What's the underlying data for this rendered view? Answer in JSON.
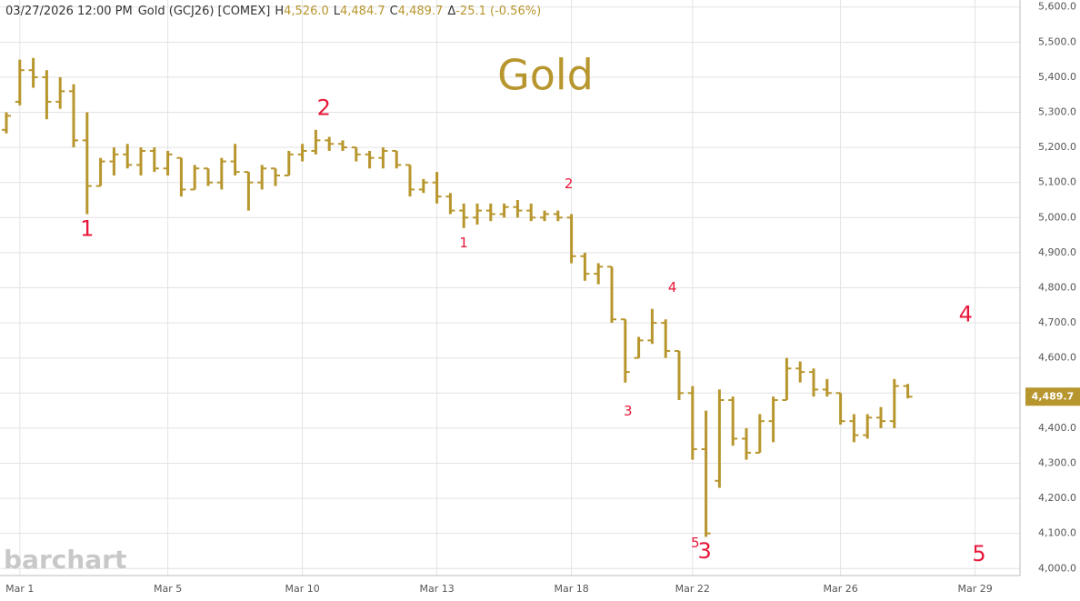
{
  "chart_data": {
    "type": "ohlc",
    "title": "Gold",
    "header": {
      "date_time": "03/27/2026  12:00 PM",
      "instrument": "Gold (GCJ26) [COMEX]",
      "stats": [
        {
          "key": "H",
          "value": "4,526.0"
        },
        {
          "key": "L",
          "value": "4,484.7"
        },
        {
          "key": "C",
          "value": "4,489.7"
        },
        {
          "key": "Δ",
          "value": "-25.1 (-0.56%)"
        }
      ]
    },
    "watermark": "barchart",
    "color": "#b8962e",
    "annotation_color": "#e8173a",
    "categories": [
      null,
      "Mar 1",
      null,
      null,
      null,
      null,
      null,
      null,
      null,
      null,
      null,
      null,
      "Mar 5",
      null,
      null,
      null,
      null,
      null,
      null,
      null,
      null,
      null,
      "Mar 10",
      null,
      null,
      null,
      null,
      null,
      null,
      null,
      null,
      null,
      "Mar 13",
      null,
      null,
      null,
      null,
      null,
      null,
      null,
      null,
      null,
      "Mar 18",
      null,
      null,
      null,
      null,
      null,
      null,
      null,
      null,
      "Mar 22",
      null,
      null,
      null,
      null,
      null,
      null,
      null,
      null,
      null,
      null,
      "Mar 26",
      null,
      null,
      null,
      null,
      null,
      null,
      null,
      null,
      null,
      "Mar 29"
    ],
    "open": [
      5250,
      5330,
      5420,
      5400,
      5330,
      5360,
      5220,
      5090,
      5160,
      5180,
      5150,
      5190,
      5140,
      5170,
      5080,
      5140,
      5100,
      5160,
      5130,
      5100,
      5140,
      5120,
      5180,
      5190,
      5220,
      5210,
      5200,
      5180,
      5170,
      5190,
      5150,
      5080,
      5100,
      5060,
      5020,
      5000,
      5020,
      5010,
      5030,
      5020,
      5000,
      5010,
      5000,
      4890,
      4840,
      4860,
      4710,
      4600,
      4650,
      4700,
      4620,
      4500,
      4340,
      4250,
      4480,
      4370,
      4330,
      4420,
      4480,
      4570,
      4560,
      4510,
      4500,
      4420,
      4380,
      4430,
      4420,
      4520,
      null,
      null,
      null,
      null,
      null
    ],
    "high": [
      5300,
      5450,
      5455,
      5420,
      5400,
      5380,
      5300,
      5170,
      5200,
      5210,
      5200,
      5200,
      5190,
      5170,
      5150,
      5140,
      5170,
      5210,
      5130,
      5150,
      5140,
      5190,
      5210,
      5250,
      5230,
      5220,
      5200,
      5190,
      5200,
      5190,
      5150,
      5110,
      5130,
      5070,
      5040,
      5040,
      5040,
      5040,
      5050,
      5040,
      5020,
      5020,
      5010,
      4900,
      4870,
      4860,
      4710,
      4660,
      4740,
      4710,
      4620,
      4520,
      4450,
      4510,
      4490,
      4400,
      4440,
      4490,
      4600,
      4590,
      4570,
      4540,
      4500,
      4440,
      4440,
      4460,
      4540,
      4526,
      null,
      null,
      null,
      null,
      null
    ],
    "low": [
      5240,
      5320,
      5370,
      5280,
      5310,
      5200,
      5010,
      5090,
      5120,
      5140,
      5120,
      5130,
      5120,
      5060,
      5080,
      5090,
      5080,
      5120,
      5020,
      5080,
      5090,
      5120,
      5160,
      5180,
      5190,
      5190,
      5160,
      5140,
      5140,
      5140,
      5060,
      5070,
      5040,
      5010,
      4970,
      4980,
      4990,
      5000,
      5000,
      4990,
      4990,
      4990,
      4870,
      4820,
      4810,
      4700,
      4530,
      4600,
      4640,
      4600,
      4480,
      4310,
      4090,
      4230,
      4350,
      4310,
      4330,
      4360,
      4480,
      4530,
      4490,
      4490,
      4410,
      4360,
      4370,
      4400,
      4400,
      4484.7,
      null,
      null,
      null,
      null,
      null
    ],
    "close": [
      5290,
      5420,
      5400,
      5330,
      5360,
      5220,
      5090,
      5160,
      5180,
      5150,
      5190,
      5140,
      5180,
      5080,
      5140,
      5100,
      5160,
      5130,
      5100,
      5140,
      5120,
      5180,
      5190,
      5220,
      5210,
      5200,
      5180,
      5170,
      5190,
      5150,
      5080,
      5100,
      5060,
      5020,
      5000,
      5020,
      5010,
      5030,
      5020,
      5000,
      5010,
      5000,
      4890,
      4840,
      4860,
      4710,
      4560,
      4650,
      4700,
      4620,
      4500,
      4340,
      4100,
      4480,
      4370,
      4330,
      4420,
      4480,
      4570,
      4560,
      4510,
      4500,
      4420,
      4380,
      4430,
      4420,
      4520,
      4489.7,
      null,
      null,
      null,
      null,
      null
    ],
    "last_label": "4,489.7",
    "ylim": [
      3980,
      5620
    ],
    "yticks": [
      {
        "value": 4000,
        "label": "4,000.0"
      },
      {
        "value": 4100,
        "label": "4,100.0"
      },
      {
        "value": 4200,
        "label": "4,200.0"
      },
      {
        "value": 4300,
        "label": "4,300.0"
      },
      {
        "value": 4400,
        "label": "4,400.0"
      },
      {
        "value": 4500,
        "label": "4,500.0"
      },
      {
        "value": 4600,
        "label": "4,600.0"
      },
      {
        "value": 4700,
        "label": "4,700.0"
      },
      {
        "value": 4800,
        "label": "4,800.0"
      },
      {
        "value": 4900,
        "label": "4,900.0"
      },
      {
        "value": 5000,
        "label": "5,000.0"
      },
      {
        "value": 5100,
        "label": "5,100.0"
      },
      {
        "value": 5200,
        "label": "5,200.0"
      },
      {
        "value": 5300,
        "label": "5,300.0"
      },
      {
        "value": 5400,
        "label": "5,400.0"
      },
      {
        "value": 5500,
        "label": "5,500.0"
      },
      {
        "value": 5600,
        "label": "5,600.0"
      }
    ],
    "grid": true,
    "annotations": [
      {
        "text": "1",
        "x": 6,
        "y": 4966,
        "size": "large"
      },
      {
        "text": "2",
        "x": 23.6,
        "y": 5310,
        "size": "large"
      },
      {
        "text": "1",
        "x": 34,
        "y": 4927,
        "size": "small"
      },
      {
        "text": "2",
        "x": 41.8,
        "y": 5095,
        "size": "small"
      },
      {
        "text": "3",
        "x": 46.2,
        "y": 4448,
        "size": "small"
      },
      {
        "text": "4",
        "x": 49.5,
        "y": 4800,
        "size": "small"
      },
      {
        "text": "5",
        "x": 51.2,
        "y": 4072,
        "size": "small"
      },
      {
        "text": "3",
        "x": 51.9,
        "y": 4047,
        "size": "large"
      },
      {
        "text": "4",
        "x": 71.3,
        "y": 4722,
        "size": "large"
      },
      {
        "text": "5",
        "x": 72.3,
        "y": 4039,
        "size": "large"
      }
    ]
  }
}
